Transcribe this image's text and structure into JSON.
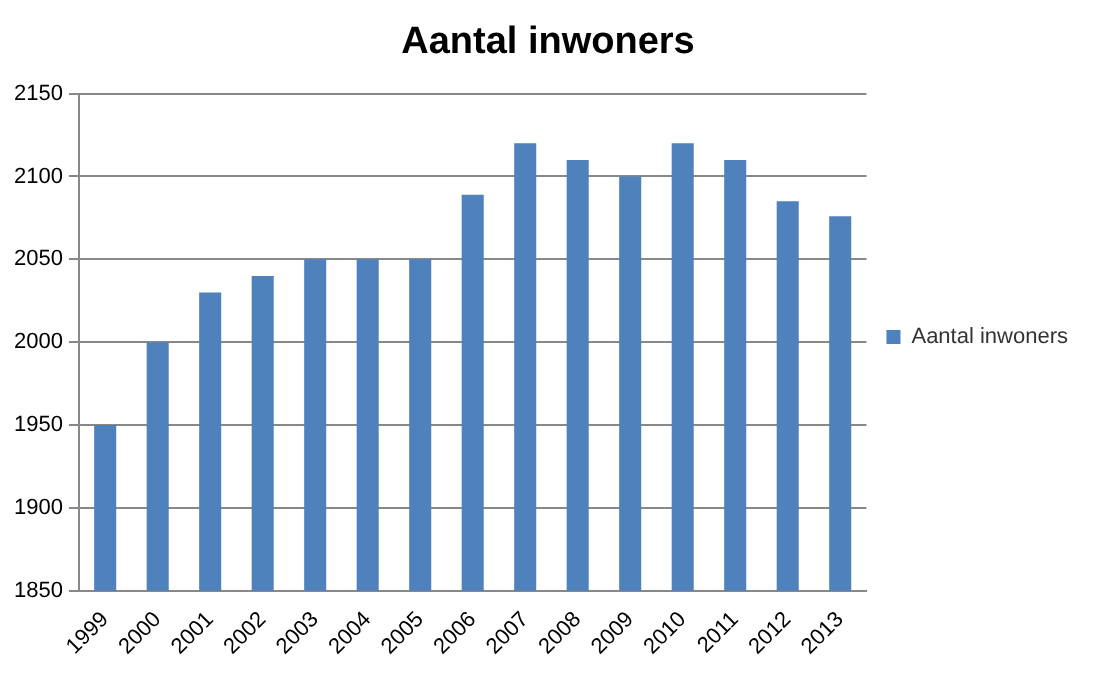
{
  "chart_data": {
    "type": "bar",
    "title": "Aantal inwoners",
    "categories": [
      "1999",
      "2000",
      "2001",
      "2002",
      "2003",
      "2004",
      "2005",
      "2006",
      "2007",
      "2008",
      "2009",
      "2010",
      "2011",
      "2012",
      "2013"
    ],
    "series": [
      {
        "name": "Aantal inwoners",
        "color": "#4f81bd",
        "values": [
          1950,
          2000,
          2030,
          2040,
          2050,
          2050,
          2050,
          2089,
          2120,
          2110,
          2100,
          2120,
          2110,
          2085,
          2076
        ]
      }
    ],
    "ylim": [
      1850,
      2150
    ],
    "yticks": [
      1850,
      1900,
      1950,
      2000,
      2050,
      2100,
      2150
    ],
    "grid": "y",
    "legend": "right"
  }
}
